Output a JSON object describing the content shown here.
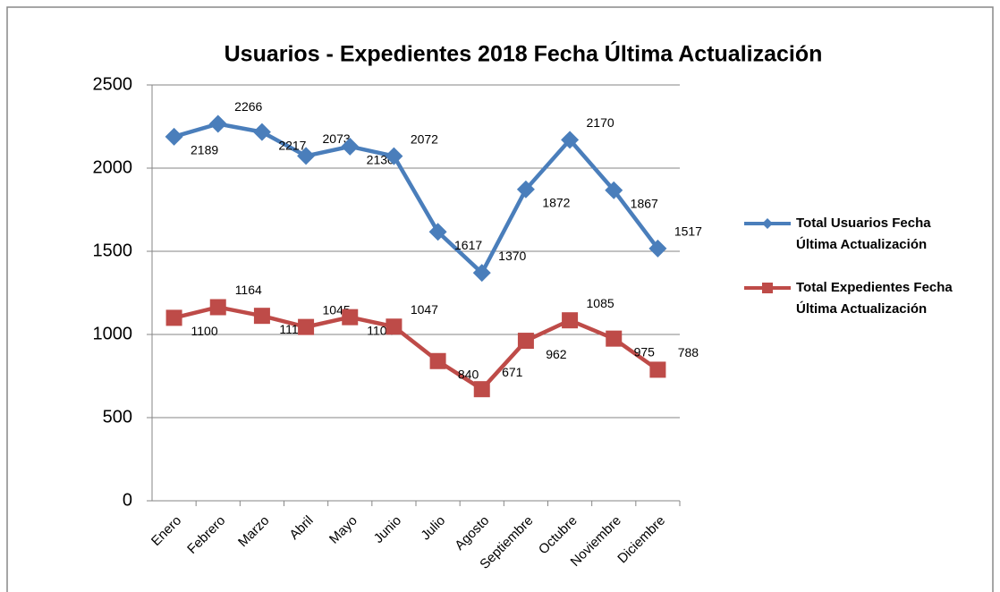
{
  "chart_data": {
    "type": "line",
    "title": "Usuarios - Expedientes 2018 Fecha Última Actualización",
    "categories": [
      "Enero",
      "Febrero",
      "Marzo",
      "Abril",
      "Mayo",
      "Junio",
      "Julio",
      "Agosto",
      "Septiembre",
      "Octubre",
      "Noviembre",
      "Diciembre"
    ],
    "series": [
      {
        "name": "Total Usuarios Fecha Última Actualización",
        "color": "#4a7ebb",
        "marker": "diamond",
        "values": [
          2189,
          2266,
          2217,
          2073,
          2130,
          2072,
          1617,
          1370,
          1872,
          2170,
          1867,
          1517
        ]
      },
      {
        "name": "Total Expedientes Fecha Última Actualización",
        "color": "#be4b48",
        "marker": "square",
        "values": [
          1100,
          1164,
          1112,
          1045,
          1104,
          1047,
          840,
          671,
          962,
          1085,
          975,
          788
        ]
      }
    ],
    "ylim": [
      0,
      2500
    ],
    "yticks": [
      0,
      500,
      1000,
      1500,
      2000,
      2500
    ],
    "grid": true,
    "legend": "right"
  }
}
